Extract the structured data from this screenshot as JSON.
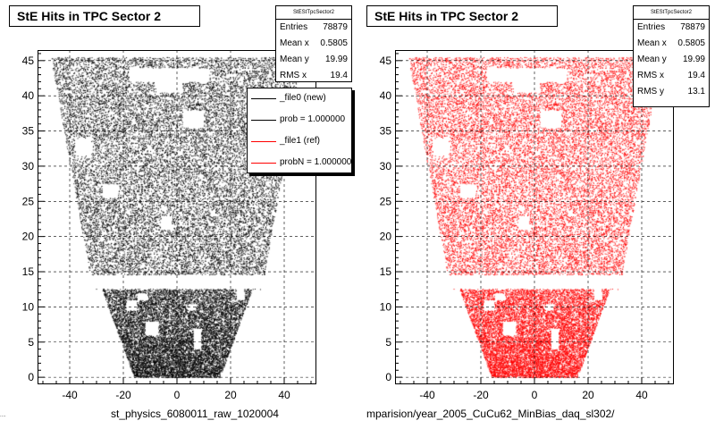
{
  "chart_data": [
    {
      "type": "scatter",
      "title": "StE Hits in TPC Sector 2",
      "xlabel": "st_physics_6080011_raw_1020004",
      "ylabel": "",
      "xlim": [
        -52,
        52
      ],
      "ylim": [
        -1,
        46.5
      ],
      "xticks": [
        -40,
        -20,
        0,
        20,
        40
      ],
      "yticks": [
        0,
        5,
        10,
        15,
        20,
        25,
        30,
        35,
        40,
        45
      ],
      "grid": true,
      "legend_position": "top-right",
      "marker_color": "#000000",
      "series_note": "dense point cloud of TPC hit positions (x,y)",
      "stats": {
        "title": "StEStTpcSector2",
        "rows": [
          {
            "label": "Entries",
            "value": "78879"
          },
          {
            "label": "Mean x",
            "value": "0.5805"
          },
          {
            "label": "Mean y",
            "value": "19.99"
          },
          {
            "label": "RMS x",
            "value": "19.4"
          }
        ]
      },
      "legend": [
        {
          "label": "_file0 (new)",
          "color": "#000000"
        },
        {
          "label": "prob = 1.000000",
          "color": "#000000"
        },
        {
          "label": "_file1 (ref)",
          "color": "#ff0000"
        },
        {
          "label": "probN = 1.000000",
          "color": "#ff0000"
        }
      ]
    },
    {
      "type": "scatter",
      "title": "StE Hits in TPC Sector 2",
      "xlabel": "mparision/year_2005_CuCu62_MinBias_daq_sl302/",
      "ylabel": "",
      "xlim": [
        -52,
        52
      ],
      "ylim": [
        -1,
        46.5
      ],
      "xticks": [
        -40,
        -20,
        0,
        20,
        40
      ],
      "yticks": [
        0,
        5,
        10,
        15,
        20,
        25,
        30,
        35,
        40,
        45
      ],
      "grid": true,
      "marker_color": "#ff0000",
      "series_note": "dense point cloud of TPC hit positions (x,y)",
      "stats": {
        "title": "StEStTpcSector2",
        "rows": [
          {
            "label": "Entries",
            "value": "78879"
          },
          {
            "label": "Mean x",
            "value": "0.5805"
          },
          {
            "label": "Mean y",
            "value": "19.99"
          },
          {
            "label": "RMS x",
            "value": "19.4"
          },
          {
            "label": "RMS y",
            "value": "13.1"
          }
        ]
      }
    }
  ],
  "footer": {
    "corner_note": "...."
  }
}
